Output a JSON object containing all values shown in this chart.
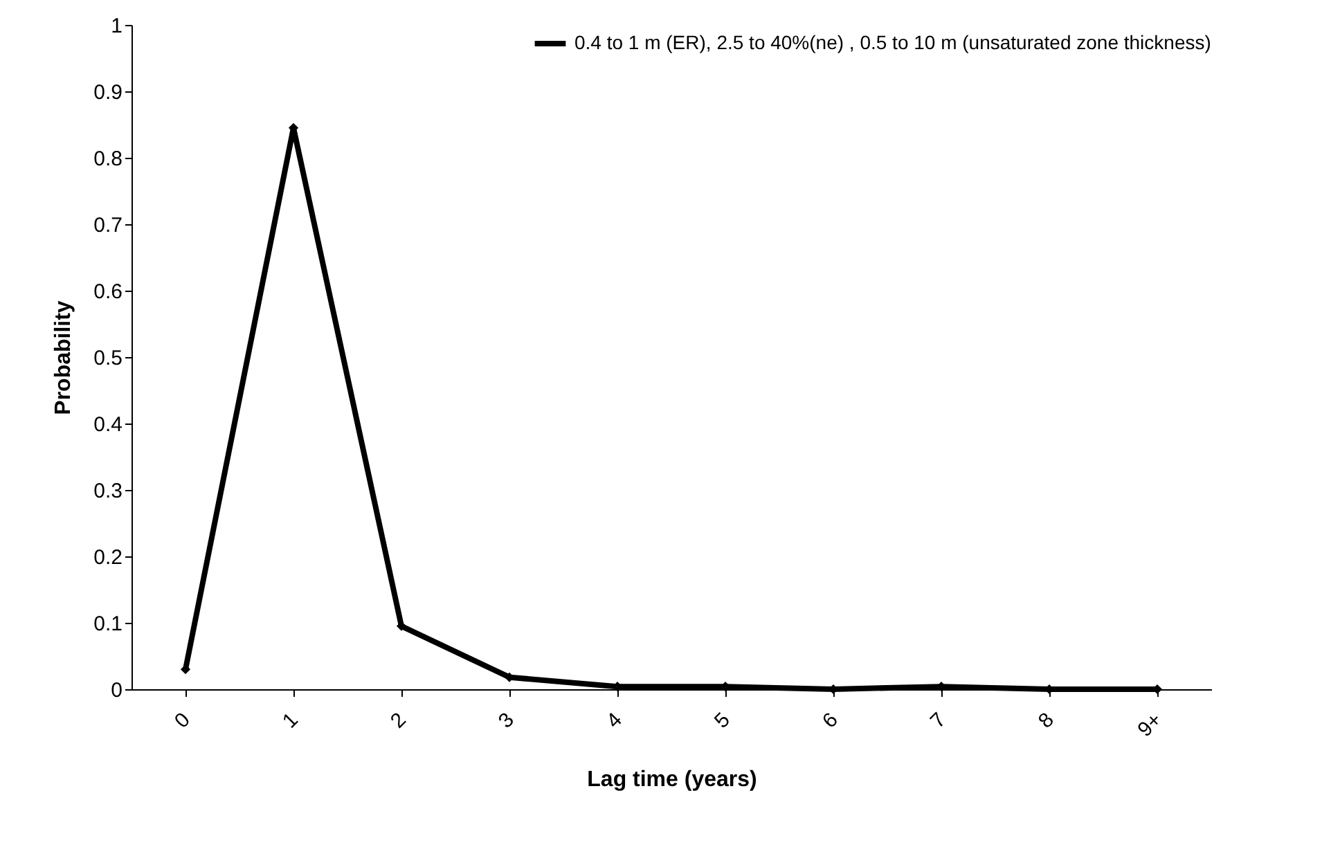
{
  "chart_data": {
    "type": "line",
    "xlabel": "Lag time (years)",
    "ylabel": "Probability",
    "categories": [
      "0",
      "1",
      "2",
      "3",
      "4",
      "5",
      "6",
      "7",
      "8",
      "9+"
    ],
    "series": [
      {
        "name": "0.4 to 1 m (ER), 2.5 to 40%(ne) , 0.5 to 10 m (unsaturated zone thickness)",
        "color": "#000000",
        "values": [
          0.03,
          0.845,
          0.095,
          0.018,
          0.004,
          0.004,
          0,
          0.004,
          0,
          0
        ]
      }
    ],
    "ylim": [
      0,
      1
    ],
    "yticks": [
      0,
      0.1,
      0.2,
      0.3,
      0.4,
      0.5,
      0.6,
      0.7,
      0.8,
      0.9,
      1
    ],
    "grid": false,
    "legend": "top right",
    "marker": "diamond",
    "line_style": "solid"
  }
}
